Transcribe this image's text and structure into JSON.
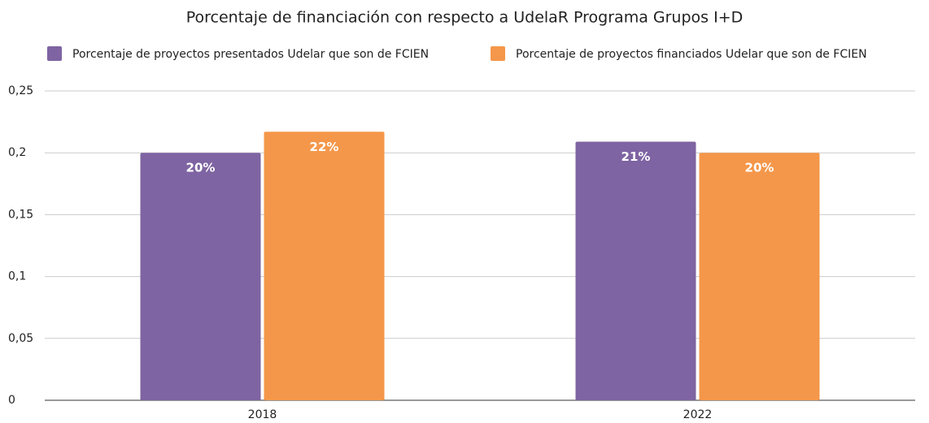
{
  "chart_data": {
    "type": "bar",
    "title": "Porcentaje de financiación con respecto a UdelaR  Programa Grupos I+D",
    "categories": [
      "2018",
      "2022"
    ],
    "series": [
      {
        "name": "Porcentaje de proyectos presentados Udelar que son de FCIEN",
        "color": "#7e64a2",
        "values": [
          0.2,
          0.209
        ],
        "value_labels": [
          "20%",
          "21%"
        ]
      },
      {
        "name": "Porcentaje de proyectos financiados Udelar que son de FCIEN",
        "color": "#f4974a",
        "values": [
          0.217,
          0.2
        ],
        "value_labels": [
          "22%",
          "20%"
        ]
      }
    ],
    "ylim": [
      0,
      0.25
    ],
    "yticks": [
      0,
      {
        "value": 0.05,
        "label": "0,05"
      },
      {
        "value": 0.1,
        "label": "0,1"
      },
      {
        "value": 0.15,
        "label": "0,15"
      },
      {
        "value": 0.2,
        "label": "0,2"
      },
      {
        "value": 0.25,
        "label": "0,25"
      }
    ],
    "grid": true,
    "legend": "top"
  }
}
